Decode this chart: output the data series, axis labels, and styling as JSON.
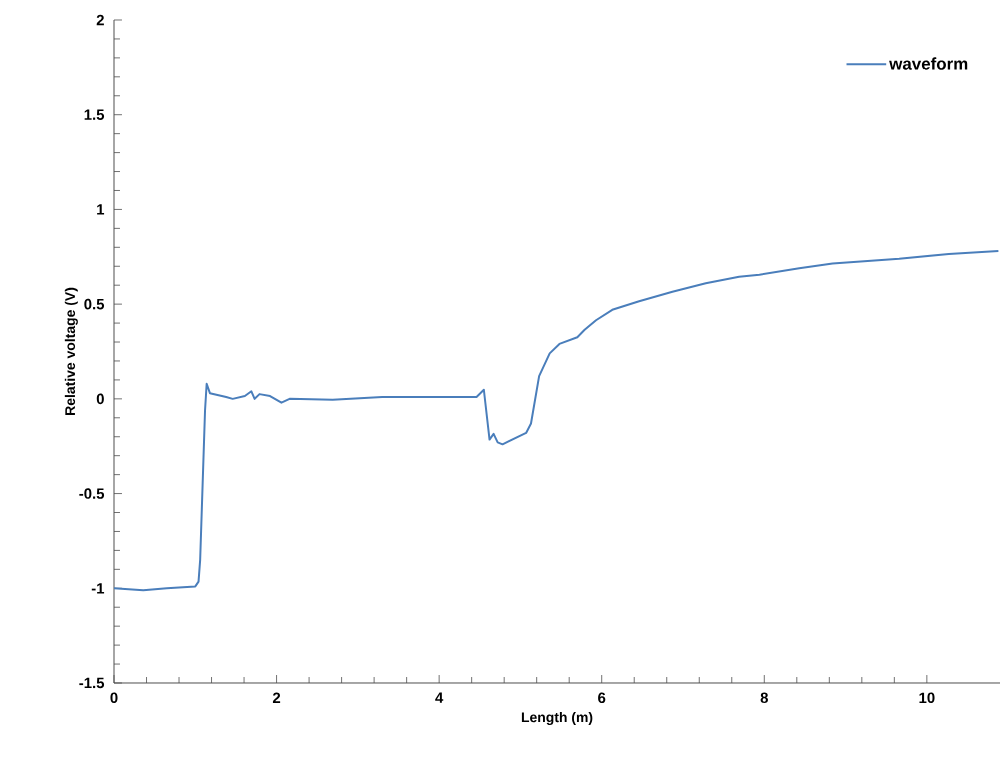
{
  "chart_data": {
    "type": "line",
    "xlabel": "Length (m)",
    "ylabel": "Relative voltage (V)",
    "xlim": [
      0,
      10.9
    ],
    "ylim": [
      -1.5,
      2
    ],
    "xticks": [
      0,
      2,
      4,
      6,
      8,
      10
    ],
    "yticks": [
      -1.5,
      -1,
      -0.5,
      0,
      0.5,
      1,
      1.5,
      2
    ],
    "grid": false,
    "legend": "top right",
    "series": [
      {
        "name": "waveform",
        "color": "#4a7ebb",
        "x": [
          0,
          0.36,
          0.65,
          1.0,
          1.04,
          1.06,
          1.12,
          1.14,
          1.18,
          1.38,
          1.46,
          1.61,
          1.69,
          1.73,
          1.79,
          1.92,
          2.06,
          2.16,
          2.69,
          3.3,
          3.92,
          4.46,
          4.55,
          4.62,
          4.67,
          4.72,
          4.78,
          5.07,
          5.13,
          5.23,
          5.36,
          5.48,
          5.7,
          5.79,
          5.93,
          6.13,
          6.46,
          6.87,
          7.28,
          7.69,
          7.94,
          8.43,
          8.84,
          9.66,
          10.27,
          10.88
        ],
        "values": [
          -1.0,
          -1.01,
          -1.0,
          -0.99,
          -0.965,
          -0.85,
          -0.06,
          0.08,
          0.03,
          0.01,
          0.0,
          0.015,
          0.04,
          0.0,
          0.025,
          0.015,
          -0.02,
          0.0,
          -0.005,
          0.01,
          0.01,
          0.01,
          0.048,
          -0.215,
          -0.185,
          -0.23,
          -0.24,
          -0.18,
          -0.13,
          0.12,
          0.24,
          0.29,
          0.325,
          0.365,
          0.415,
          0.47,
          0.515,
          0.565,
          0.61,
          0.645,
          0.655,
          0.69,
          0.715,
          0.74,
          0.765,
          0.78
        ]
      }
    ]
  }
}
